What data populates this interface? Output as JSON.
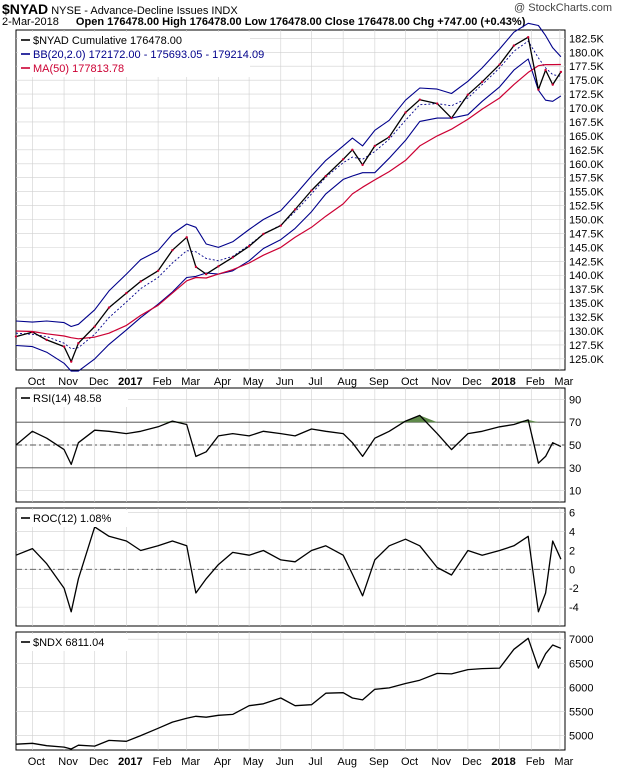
{
  "header": {
    "symbol": "$NYAD",
    "name": "NYSE - Advance-Decline Issues INDX",
    "watermark": "@ StockCharts.com",
    "date": "2-Mar-2018",
    "ohlc": "Open 176478.00  High 176478.00  Low 176478.00  Close 176478.00  Chg +747.00 (+0.43%)"
  },
  "colors": {
    "price": "#000000",
    "bb": "#00008b",
    "ma": "#cc0033",
    "rsi_fill": "#5f8a4a",
    "grid": "#d0d0d0",
    "dash": "#555555"
  },
  "chart_data": [
    {
      "type": "line",
      "panel": "price",
      "legend": [
        {
          "text": "$NYAD Cumulative 176478.00",
          "color": "#000000"
        },
        {
          "text": "BB(20,2.0) 172172.00 - 175693.05 - 179214.09",
          "color": "#00008b"
        },
        {
          "text": "MA(50) 177813.78",
          "color": "#cc0033"
        }
      ],
      "x": [
        "2016-09-15",
        "2016-10-01",
        "2016-10-15",
        "2016-11-01",
        "2016-11-08",
        "2016-11-15",
        "2016-12-01",
        "2016-12-15",
        "2017-01-01",
        "2017-01-15",
        "2017-02-01",
        "2017-02-15",
        "2017-03-01",
        "2017-03-10",
        "2017-03-20",
        "2017-04-01",
        "2017-04-15",
        "2017-05-01",
        "2017-05-15",
        "2017-06-01",
        "2017-06-15",
        "2017-07-01",
        "2017-07-15",
        "2017-08-01",
        "2017-08-10",
        "2017-08-20",
        "2017-09-01",
        "2017-09-15",
        "2017-10-01",
        "2017-10-15",
        "2017-11-01",
        "2017-11-15",
        "2017-12-01",
        "2017-12-15",
        "2018-01-01",
        "2018-01-15",
        "2018-01-29",
        "2018-02-08",
        "2018-02-15",
        "2018-02-22",
        "2018-03-02"
      ],
      "series": [
        {
          "name": "$NYAD Cumulative",
          "values": [
            129000,
            129800,
            128400,
            127200,
            124500,
            127800,
            130800,
            134200,
            136800,
            138900,
            140800,
            144500,
            146800,
            141500,
            140200,
            141600,
            143200,
            145200,
            147400,
            148900,
            151800,
            155200,
            157800,
            160800,
            162500,
            159800,
            163200,
            164800,
            169200,
            171500,
            170800,
            168200,
            172400,
            174700,
            177800,
            181200,
            182700,
            173300,
            176800,
            174200,
            176478
          ]
        },
        {
          "name": "MA(50)",
          "values": [
            130000,
            129900,
            129500,
            129100,
            128800,
            128600,
            128900,
            129600,
            131000,
            132800,
            134600,
            136800,
            139000,
            139600,
            139500,
            140200,
            141000,
            142200,
            143600,
            145000,
            146800,
            148600,
            150600,
            152800,
            154600,
            155800,
            157100,
            158600,
            160600,
            163200,
            165000,
            166200,
            168000,
            169800,
            171800,
            174200,
            176400,
            177600,
            177800,
            177800,
            177813.78
          ]
        },
        {
          "name": "BB Upper",
          "values": [
            131800,
            131600,
            131800,
            131500,
            130800,
            131200,
            133800,
            137200,
            140200,
            142800,
            144400,
            147400,
            149200,
            148600,
            145600,
            145000,
            146000,
            148200,
            150000,
            151600,
            154400,
            157800,
            160600,
            163200,
            164600,
            163200,
            166000,
            167800,
            171400,
            173600,
            173400,
            172600,
            174800,
            177200,
            180600,
            183600,
            185200,
            184800,
            183000,
            180800,
            179214.09
          ]
        },
        {
          "name": "BB Middle",
          "values": [
            129600,
            129400,
            129000,
            127800,
            126800,
            127000,
            129400,
            132400,
            135200,
            137600,
            139600,
            142200,
            144400,
            144200,
            143000,
            142600,
            143400,
            145400,
            147400,
            149000,
            151400,
            154600,
            157600,
            160200,
            161200,
            160800,
            162200,
            164400,
            167800,
            170600,
            170800,
            170400,
            171800,
            174200,
            177200,
            180200,
            182000,
            179000,
            177200,
            176000,
            175693.05
          ]
        },
        {
          "name": "BB Lower",
          "values": [
            127400,
            127200,
            126200,
            124200,
            122800,
            122800,
            125000,
            127600,
            130200,
            132400,
            134800,
            137000,
            139600,
            139800,
            140400,
            140200,
            140800,
            142600,
            144800,
            146400,
            148400,
            151400,
            154600,
            157200,
            157800,
            158400,
            158400,
            161000,
            164200,
            167600,
            168200,
            168200,
            168800,
            171200,
            173800,
            176800,
            178800,
            173200,
            171400,
            171200,
            172172.0
          ]
        }
      ],
      "ylim": [
        123000,
        184000
      ],
      "yticks": [
        "125.0K",
        "127.5K",
        "130.0K",
        "132.5K",
        "135.0K",
        "137.5K",
        "140.0K",
        "142.5K",
        "145.0K",
        "147.5K",
        "150.0K",
        "152.5K",
        "155.0K",
        "157.5K",
        "160.0K",
        "162.5K",
        "165.0K",
        "167.5K",
        "170.0K",
        "172.5K",
        "175.0K",
        "177.5K",
        "180.0K",
        "182.5K"
      ],
      "ytick_values": [
        125000,
        127500,
        130000,
        132500,
        135000,
        137500,
        140000,
        142500,
        145000,
        147500,
        150000,
        152500,
        155000,
        157500,
        160000,
        162500,
        165000,
        167500,
        170000,
        172500,
        175000,
        177500,
        180000,
        182500
      ],
      "xticks": [
        "Oct",
        "Nov",
        "Dec",
        "2017",
        "Feb",
        "Mar",
        "Apr",
        "May",
        "Jun",
        "Jul",
        "Aug",
        "Sep",
        "Oct",
        "Nov",
        "Dec",
        "2018",
        "Feb",
        "Mar"
      ],
      "xtick_dates": [
        "2016-10-01",
        "2016-11-01",
        "2016-12-01",
        "2017-01-01",
        "2017-02-01",
        "2017-03-01",
        "2017-04-01",
        "2017-05-01",
        "2017-06-01",
        "2017-07-01",
        "2017-08-01",
        "2017-09-01",
        "2017-10-01",
        "2017-11-01",
        "2017-12-01",
        "2018-01-01",
        "2018-02-01",
        "2018-03-01"
      ],
      "grid": true
    },
    {
      "type": "line",
      "panel": "rsi",
      "legend": [
        {
          "text": "RSI(14) 48.58",
          "color": "#000000"
        }
      ],
      "x": [
        "2016-09-15",
        "2016-10-01",
        "2016-10-15",
        "2016-11-01",
        "2016-11-08",
        "2016-11-15",
        "2016-12-01",
        "2016-12-15",
        "2017-01-01",
        "2017-01-15",
        "2017-02-01",
        "2017-02-15",
        "2017-03-01",
        "2017-03-10",
        "2017-03-20",
        "2017-04-01",
        "2017-04-15",
        "2017-05-01",
        "2017-05-15",
        "2017-06-01",
        "2017-06-15",
        "2017-07-01",
        "2017-07-15",
        "2017-08-01",
        "2017-08-10",
        "2017-08-20",
        "2017-09-01",
        "2017-09-15",
        "2017-10-01",
        "2017-10-15",
        "2017-11-01",
        "2017-11-15",
        "2017-12-01",
        "2017-12-15",
        "2018-01-01",
        "2018-01-15",
        "2018-01-29",
        "2018-02-08",
        "2018-02-15",
        "2018-02-22",
        "2018-03-02"
      ],
      "values": [
        50,
        62,
        56,
        46,
        33,
        52,
        63,
        62,
        60,
        62,
        66,
        71,
        68,
        40,
        44,
        58,
        60,
        58,
        62,
        60,
        58,
        64,
        62,
        60,
        52,
        40,
        56,
        62,
        71,
        76,
        60,
        46,
        60,
        62,
        66,
        68,
        72,
        34,
        40,
        52,
        48.58
      ],
      "ylim": [
        0,
        100
      ],
      "yticks": [
        "90",
        "70",
        "50",
        "30",
        "10"
      ],
      "ytick_values": [
        90,
        70,
        50,
        30,
        10
      ],
      "ref_lines": [
        70,
        50,
        30
      ],
      "overbought_fill": 70,
      "grid": true
    },
    {
      "type": "line",
      "panel": "roc",
      "legend": [
        {
          "text": "ROC(12) 1.08%",
          "color": "#000000"
        }
      ],
      "x": [
        "2016-09-15",
        "2016-10-01",
        "2016-10-15",
        "2016-11-01",
        "2016-11-08",
        "2016-11-15",
        "2016-12-01",
        "2016-12-15",
        "2017-01-01",
        "2017-01-15",
        "2017-02-01",
        "2017-02-15",
        "2017-03-01",
        "2017-03-10",
        "2017-03-20",
        "2017-04-01",
        "2017-04-15",
        "2017-05-01",
        "2017-05-15",
        "2017-06-01",
        "2017-06-15",
        "2017-07-01",
        "2017-07-15",
        "2017-08-01",
        "2017-08-10",
        "2017-08-20",
        "2017-09-01",
        "2017-09-15",
        "2017-10-01",
        "2017-10-15",
        "2017-11-01",
        "2017-11-15",
        "2017-12-01",
        "2017-12-15",
        "2018-01-01",
        "2018-01-15",
        "2018-01-29",
        "2018-02-08",
        "2018-02-15",
        "2018-02-22",
        "2018-03-02"
      ],
      "values": [
        1.5,
        2.2,
        0.6,
        -2.0,
        -4.5,
        -1.0,
        4.5,
        3.5,
        3.0,
        2.0,
        2.5,
        3.0,
        2.5,
        -2.5,
        -1.0,
        0.5,
        1.8,
        1.5,
        2.0,
        1.0,
        0.8,
        2.0,
        2.5,
        1.5,
        -0.5,
        -2.8,
        1.0,
        2.5,
        3.2,
        2.5,
        0.2,
        -0.6,
        2.0,
        1.5,
        2.0,
        2.5,
        3.5,
        -4.5,
        -2.5,
        3.0,
        1.08
      ],
      "ylim": [
        -6,
        6.5
      ],
      "yticks": [
        "6",
        "4",
        "2",
        "0",
        "-2",
        "-4"
      ],
      "ytick_values": [
        6,
        4,
        2,
        0,
        -2,
        -4
      ],
      "ref_lines": [
        0
      ],
      "grid": true
    },
    {
      "type": "line",
      "panel": "ndx",
      "legend": [
        {
          "text": "$NDX 6811.04",
          "color": "#000000"
        }
      ],
      "x": [
        "2016-09-15",
        "2016-10-01",
        "2016-10-15",
        "2016-11-01",
        "2016-11-08",
        "2016-11-15",
        "2016-12-01",
        "2016-12-15",
        "2017-01-01",
        "2017-01-15",
        "2017-02-01",
        "2017-02-15",
        "2017-03-01",
        "2017-03-10",
        "2017-03-20",
        "2017-04-01",
        "2017-04-15",
        "2017-05-01",
        "2017-05-15",
        "2017-06-01",
        "2017-06-15",
        "2017-07-01",
        "2017-07-15",
        "2017-08-01",
        "2017-08-10",
        "2017-08-20",
        "2017-09-01",
        "2017-09-15",
        "2017-10-01",
        "2017-10-15",
        "2017-11-01",
        "2017-11-15",
        "2017-12-01",
        "2017-12-15",
        "2018-01-01",
        "2018-01-15",
        "2018-01-29",
        "2018-02-08",
        "2018-02-15",
        "2018-02-22",
        "2018-03-02"
      ],
      "values": [
        4820,
        4840,
        4790,
        4760,
        4720,
        4800,
        4780,
        4900,
        4880,
        5000,
        5150,
        5280,
        5360,
        5400,
        5380,
        5420,
        5440,
        5620,
        5660,
        5780,
        5620,
        5640,
        5880,
        5890,
        5780,
        5740,
        5960,
        5990,
        6080,
        6150,
        6290,
        6280,
        6370,
        6390,
        6400,
        6790,
        7020,
        6400,
        6700,
        6880,
        6811.04
      ],
      "ylim": [
        4700,
        7150
      ],
      "yticks": [
        "7000",
        "6500",
        "6000",
        "5500",
        "5000"
      ],
      "ytick_values": [
        7000,
        6500,
        6000,
        5500,
        5000
      ],
      "grid": true
    }
  ]
}
